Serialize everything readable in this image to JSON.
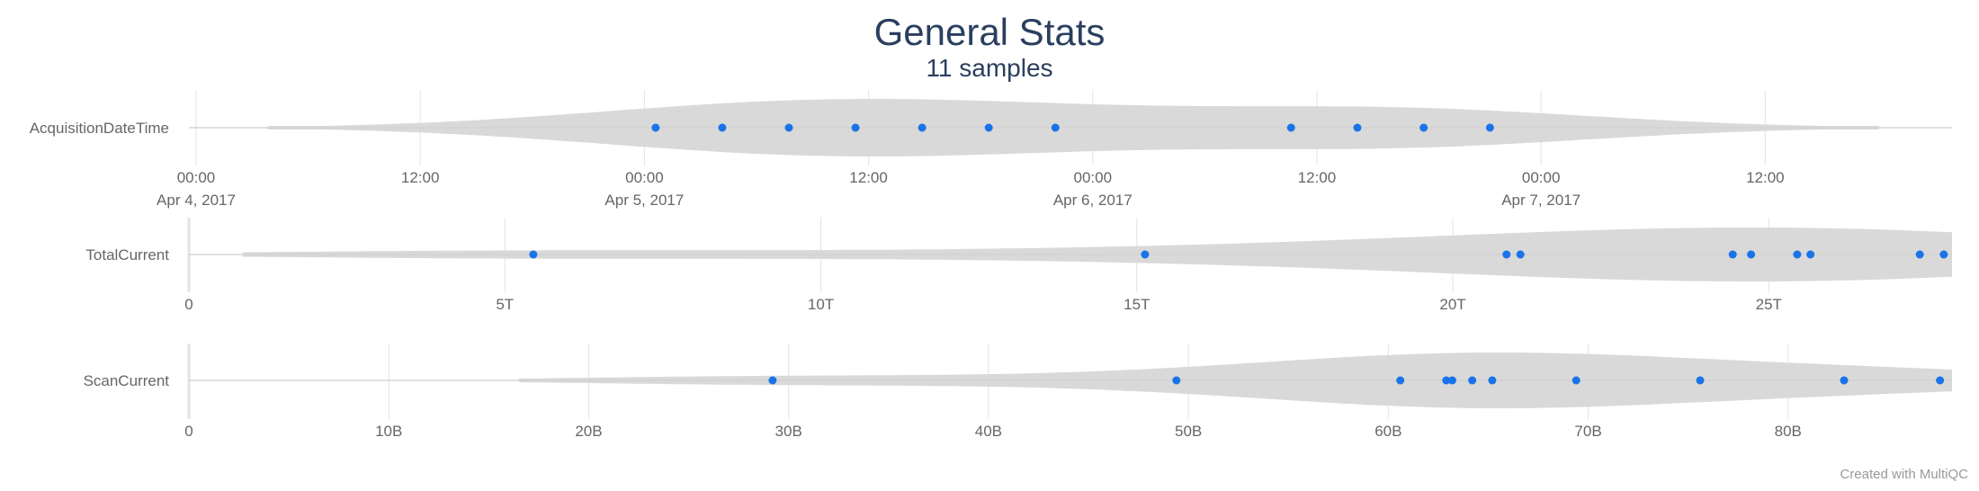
{
  "chart_data": {
    "type": "violin",
    "title": "General Stats",
    "subtitle": "11 samples",
    "credit": "Created with MultiQC",
    "colors": {
      "title": "#2a3f5f",
      "point": "#1a73e8",
      "violin": "#d9d9d9",
      "grid": "#e3e3e3",
      "text": "#666666"
    },
    "rows": [
      {
        "metric": "AcquisitionDateTime",
        "axis_type": "time",
        "xlim": [
          "2017-04-04 00:00",
          "2017-04-07 22:00"
        ],
        "ticks": [
          {
            "x": "2017-04-04 00:00",
            "label": "00:00",
            "sublabel": "Apr 4, 2017"
          },
          {
            "x": "2017-04-04 12:00",
            "label": "12:00",
            "sublabel": ""
          },
          {
            "x": "2017-04-05 00:00",
            "label": "00:00",
            "sublabel": "Apr 5, 2017"
          },
          {
            "x": "2017-04-05 12:00",
            "label": "12:00",
            "sublabel": ""
          },
          {
            "x": "2017-04-06 00:00",
            "label": "00:00",
            "sublabel": "Apr 6, 2017"
          },
          {
            "x": "2017-04-06 12:00",
            "label": "12:00",
            "sublabel": ""
          },
          {
            "x": "2017-04-07 00:00",
            "label": "00:00",
            "sublabel": "Apr 7, 2017"
          },
          {
            "x": "2017-04-07 12:00",
            "label": "12:00",
            "sublabel": ""
          }
        ],
        "points": [
          "2017-04-05 00:36",
          "2017-04-05 04:10",
          "2017-04-05 07:44",
          "2017-04-05 11:18",
          "2017-04-05 14:52",
          "2017-04-05 18:26",
          "2017-04-05 22:00",
          "2017-04-06 10:37",
          "2017-04-06 14:10",
          "2017-04-06 17:43",
          "2017-04-06 21:16"
        ],
        "violin_range": [
          "2017-04-04 03:50",
          "2017-04-07 18:05"
        ]
      },
      {
        "metric": "TotalCurrent",
        "axis_type": "linear",
        "xlim": [
          0,
          27.9
        ],
        "ticks": [
          {
            "x": 0,
            "label": "0"
          },
          {
            "x": 5,
            "label": "5T"
          },
          {
            "x": 10,
            "label": "10T"
          },
          {
            "x": 15,
            "label": "15T"
          },
          {
            "x": 20,
            "label": "20T"
          },
          {
            "x": 25,
            "label": "25T"
          }
        ],
        "points": [
          5.45,
          15.13,
          20.85,
          21.07,
          24.43,
          24.72,
          25.45,
          25.66,
          27.39,
          27.77
        ],
        "violin_range": [
          0.85,
          27.9
        ]
      },
      {
        "metric": "ScanCurrent",
        "axis_type": "linear",
        "xlim": [
          0,
          88.2
        ],
        "ticks": [
          {
            "x": 0,
            "label": "0"
          },
          {
            "x": 10,
            "label": "10B"
          },
          {
            "x": 20,
            "label": "20B"
          },
          {
            "x": 30,
            "label": "30B"
          },
          {
            "x": 40,
            "label": "40B"
          },
          {
            "x": 50,
            "label": "50B"
          },
          {
            "x": 60,
            "label": "60B"
          },
          {
            "x": 70,
            "label": "70B"
          },
          {
            "x": 80,
            "label": "80B"
          }
        ],
        "points": [
          29.2,
          49.4,
          60.6,
          62.9,
          63.2,
          64.2,
          65.2,
          69.4,
          75.6,
          82.8,
          87.6
        ],
        "violin_range": [
          16.5,
          88.2
        ]
      }
    ]
  }
}
